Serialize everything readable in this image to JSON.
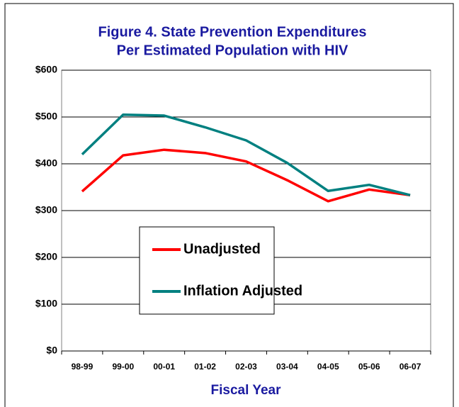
{
  "chart_data": {
    "type": "line",
    "title": "Figure 4. State Prevention Expenditures",
    "subtitle": "Per Estimated Population with HIV",
    "x_label": "Fiscal Year",
    "categories": [
      "98-99",
      "99-00",
      "00-01",
      "01-02",
      "02-03",
      "03-04",
      "04-05",
      "05-06",
      "06-07"
    ],
    "series": [
      {
        "name": "Unadjusted",
        "color": "#ff0000",
        "values": [
          341,
          418,
          430,
          423,
          405,
          365,
          320,
          345,
          333
        ]
      },
      {
        "name": "Inflation Adjusted",
        "color": "#008080",
        "values": [
          420,
          505,
          503,
          478,
          450,
          402,
          342,
          355,
          333
        ]
      }
    ],
    "ylim": [
      0,
      600
    ],
    "yticks": [
      {
        "value": 0,
        "label": "$0"
      },
      {
        "value": 100,
        "label": "$100"
      },
      {
        "value": 200,
        "label": "$200"
      },
      {
        "value": 300,
        "label": "$300"
      },
      {
        "value": 400,
        "label": "$400"
      },
      {
        "value": 500,
        "label": "$500"
      },
      {
        "value": 600,
        "label": "$600"
      }
    ],
    "grid": true,
    "legend": "center"
  }
}
